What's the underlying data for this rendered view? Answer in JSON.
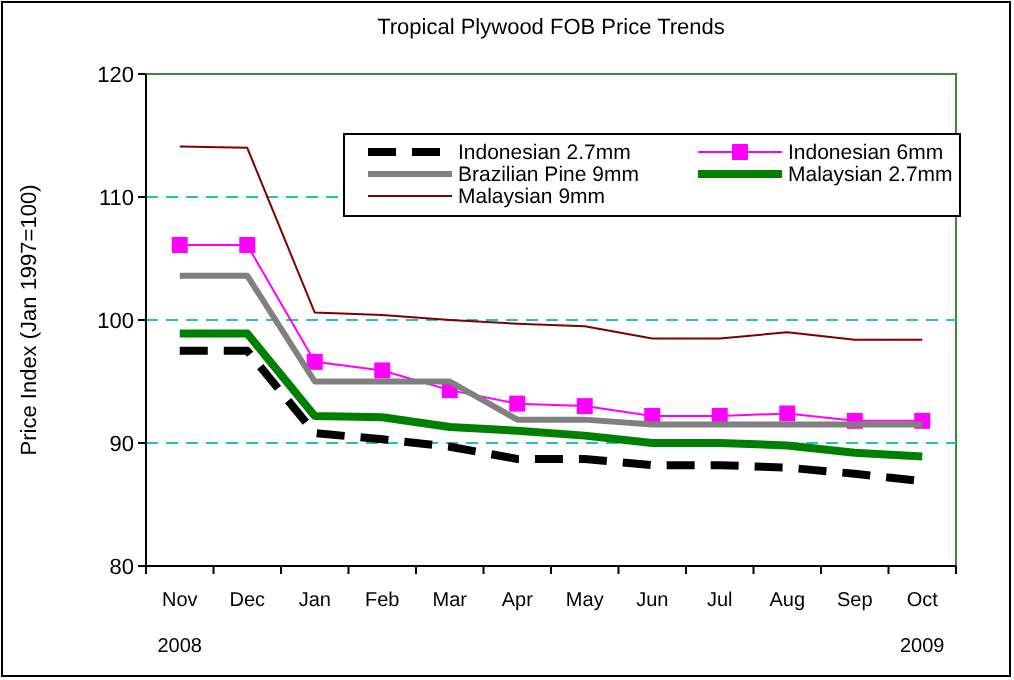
{
  "chart_data": {
    "type": "line",
    "title": "Tropical Plywood FOB Price Trends",
    "ylabel": "Price Index (Jan 1997=100)",
    "categories": [
      "Nov",
      "Dec",
      "Jan",
      "Feb",
      "Mar",
      "Apr",
      "May",
      "Jun",
      "Jul",
      "Aug",
      "Sep",
      "Oct"
    ],
    "annotations": [
      "2008",
      "2009"
    ],
    "ylim": [
      80,
      120
    ],
    "yticks": [
      80,
      90,
      100,
      110,
      120
    ],
    "grid": "y",
    "legend": "top right",
    "marker": "none",
    "series": [
      {
        "name": "Indonesian 2.7mm",
        "color": "#000000",
        "line_style": "dashed",
        "values": [
          97.5,
          97.5,
          90.8,
          90.3,
          89.7,
          88.7,
          88.7,
          88.2,
          88.2,
          88.0,
          87.5,
          86.9
        ]
      },
      {
        "name": "Indonesian 6mm",
        "color": "#ff00ff",
        "marker": "square",
        "values": [
          106.1,
          106.1,
          96.6,
          95.9,
          94.3,
          93.2,
          93.0,
          92.2,
          92.2,
          92.4,
          91.8,
          91.8
        ]
      },
      {
        "name": "Brazilian Pine 9mm",
        "color": "#808080",
        "values": [
          103.6,
          103.6,
          95.0,
          95.0,
          95.0,
          91.9,
          91.9,
          91.5,
          91.5,
          91.5,
          91.5,
          91.5
        ]
      },
      {
        "name": "Malaysian 2.7mm",
        "color": "#008000",
        "values": [
          98.9,
          98.9,
          92.2,
          92.1,
          91.3,
          91.0,
          90.6,
          90.0,
          90.0,
          89.8,
          89.2,
          88.9
        ]
      },
      {
        "name": "Malaysian 9mm",
        "color": "#800000",
        "values": [
          114.1,
          114.0,
          100.6,
          100.4,
          100.0,
          99.7,
          99.5,
          98.5,
          98.5,
          99.0,
          98.4,
          98.4
        ]
      }
    ]
  }
}
